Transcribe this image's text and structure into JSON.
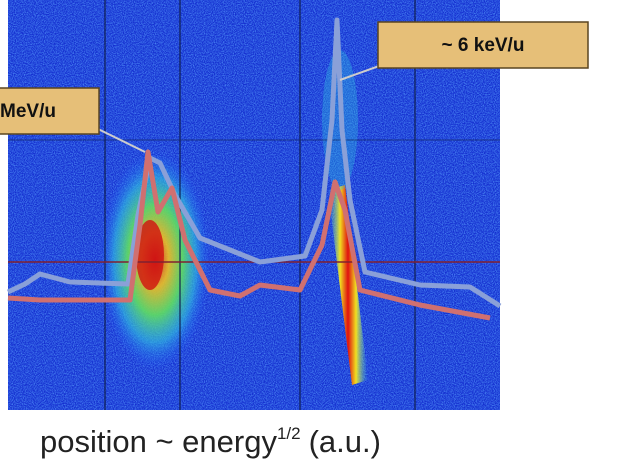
{
  "callouts": {
    "left": "MeV/u",
    "right": "~ 6 keV/u"
  },
  "caption": {
    "main": "position ~ energy",
    "superscript": "1/2",
    "unit": "(a.u.)"
  }
}
